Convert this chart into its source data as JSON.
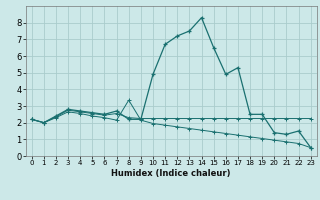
{
  "xlabel": "Humidex (Indice chaleur)",
  "background_color": "#cce8e8",
  "grid_color": "#aacccc",
  "line_color": "#1a7070",
  "xlim": [
    -0.5,
    23.5
  ],
  "ylim": [
    0,
    9
  ],
  "xticks": [
    0,
    1,
    2,
    3,
    4,
    5,
    6,
    7,
    8,
    9,
    10,
    11,
    12,
    13,
    14,
    15,
    16,
    17,
    18,
    19,
    20,
    21,
    22,
    23
  ],
  "yticks": [
    0,
    1,
    2,
    3,
    4,
    5,
    6,
    7,
    8
  ],
  "line1_x": [
    0,
    1,
    2,
    3,
    4,
    5,
    6,
    7,
    8,
    9,
    10,
    11,
    12,
    13,
    14,
    15,
    16,
    17,
    18,
    19,
    20,
    21,
    22,
    23
  ],
  "line1_y": [
    2.2,
    2.0,
    2.4,
    2.8,
    2.7,
    2.6,
    2.5,
    2.7,
    2.2,
    2.2,
    4.9,
    6.7,
    7.2,
    7.5,
    8.3,
    6.5,
    4.9,
    5.3,
    2.5,
    2.5,
    1.4,
    1.3,
    1.5,
    0.5
  ],
  "line2_x": [
    0,
    1,
    2,
    3,
    4,
    5,
    6,
    7,
    8,
    9,
    10,
    11,
    12,
    13,
    14,
    15,
    16,
    17,
    18,
    19,
    20,
    21,
    22,
    23
  ],
  "line2_y": [
    2.2,
    2.0,
    2.35,
    2.75,
    2.65,
    2.55,
    2.45,
    2.55,
    2.3,
    2.25,
    2.25,
    2.25,
    2.25,
    2.25,
    2.25,
    2.25,
    2.25,
    2.25,
    2.25,
    2.25,
    2.25,
    2.25,
    2.25,
    2.25
  ],
  "line3_x": [
    0,
    1,
    2,
    3,
    4,
    5,
    6,
    7,
    8,
    9,
    10,
    11,
    12,
    13,
    14,
    15,
    16,
    17,
    18,
    19,
    20,
    21,
    22,
    23
  ],
  "line3_y": [
    2.2,
    2.0,
    2.3,
    2.65,
    2.55,
    2.4,
    2.3,
    2.15,
    3.35,
    2.15,
    1.95,
    1.85,
    1.75,
    1.65,
    1.55,
    1.45,
    1.35,
    1.25,
    1.15,
    1.05,
    0.95,
    0.85,
    0.75,
    0.5
  ],
  "xlabel_fontsize": 6,
  "tick_fontsize": 5
}
